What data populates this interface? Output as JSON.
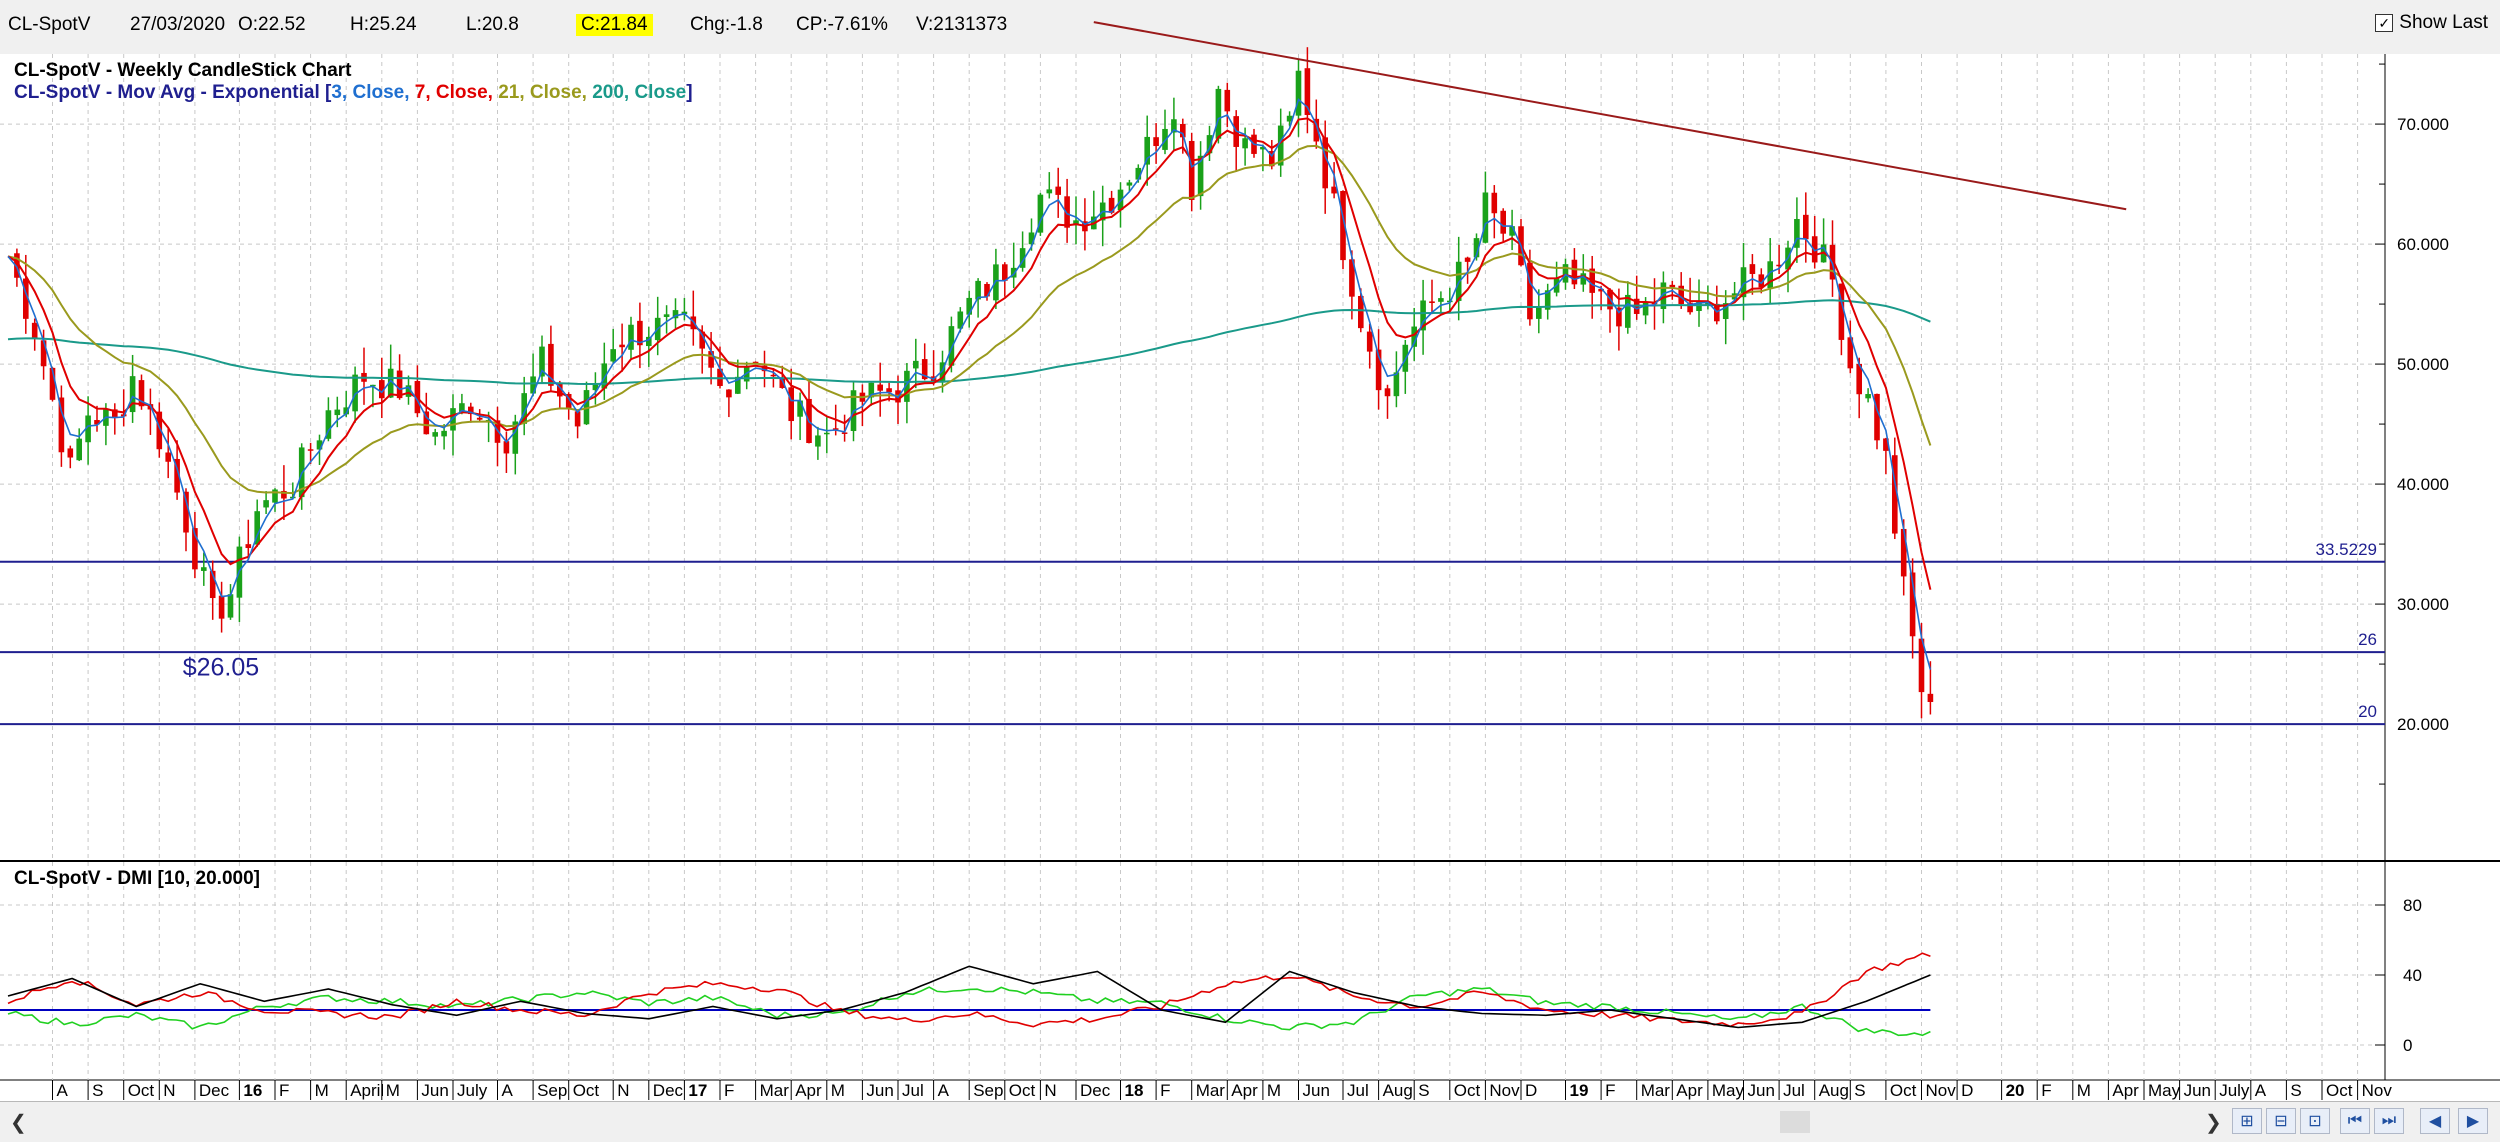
{
  "header": {
    "symbol": "CL-SpotV",
    "date": "27/03/2020",
    "open": "O:22.52",
    "high": "H:25.24",
    "low": "L:20.8",
    "close": "C:21.84",
    "change": "Chg:-1.8",
    "change_pct": "CP:-7.61%",
    "volume": "V:2131373",
    "show_last_label": "Show Last",
    "show_last_checked": true
  },
  "colors": {
    "up": "#1aa11a",
    "down": "#e00000",
    "ema3": "#1f6fd0",
    "ema7": "#e00000",
    "ema21": "#9a9a1e",
    "ema200": "#1a9a8a",
    "trendline": "#9a1a1a",
    "hline": "#1f1f8f",
    "dmi_plus": "#20d020",
    "dmi_minus": "#e00000",
    "adx": "#000000",
    "dmi_level": "#0000c0"
  },
  "chart_data": [
    {
      "type": "candlestick",
      "title": "CL-SpotV - Weekly CandleStick Chart",
      "subtitle_parts": [
        {
          "text": "CL-SpotV - Mov Avg - Exponential [",
          "color": "#1f1f8f"
        },
        {
          "text": "3, Close, ",
          "color": "#1f6fd0"
        },
        {
          "text": "7, Close, ",
          "color": "#e00000"
        },
        {
          "text": "21, Close, ",
          "color": "#9a9a1e"
        },
        {
          "text": "200, Close",
          "color": "#1a9a8a"
        },
        {
          "text": "]",
          "color": "#1f1f8f"
        }
      ],
      "ylim": [
        13,
        78
      ],
      "yticks": [
        "20.000",
        "30.000",
        "40.000",
        "50.000",
        "60.000",
        "70.000"
      ],
      "grid": true,
      "horizontal_levels": [
        {
          "value": 33.5229,
          "label": "33.5229"
        },
        {
          "value": 26,
          "label": "26"
        },
        {
          "value": 20,
          "label": "20"
        }
      ],
      "annotation": {
        "text": "$26.05",
        "x_week": 23,
        "y": 26.05
      },
      "trendline": {
        "start": {
          "week": 122,
          "value": 78.5
        },
        "end": {
          "week": 238,
          "value": 62.9
        }
      },
      "x_start_label": "A",
      "x_tick_labels": [
        {
          "label": "A",
          "week": 5
        },
        {
          "label": "S",
          "week": 9
        },
        {
          "label": "Oct",
          "week": 13
        },
        {
          "label": "N",
          "week": 17
        },
        {
          "label": "Dec",
          "week": 21
        },
        {
          "label": "16",
          "week": 26,
          "bold": true
        },
        {
          "label": "F",
          "week": 30
        },
        {
          "label": "M",
          "week": 34
        },
        {
          "label": "April",
          "week": 38
        },
        {
          "label": "M",
          "week": 42
        },
        {
          "label": "Jun",
          "week": 46
        },
        {
          "label": "July",
          "week": 50
        },
        {
          "label": "A",
          "week": 55
        },
        {
          "label": "Sep",
          "week": 59
        },
        {
          "label": "Oct",
          "week": 63
        },
        {
          "label": "N",
          "week": 68
        },
        {
          "label": "Dec",
          "week": 72
        },
        {
          "label": "17",
          "week": 76,
          "bold": true
        },
        {
          "label": "F",
          "week": 80
        },
        {
          "label": "Mar",
          "week": 84
        },
        {
          "label": "Apr",
          "week": 88
        },
        {
          "label": "M",
          "week": 92
        },
        {
          "label": "Jun",
          "week": 96
        },
        {
          "label": "Jul",
          "week": 100
        },
        {
          "label": "A",
          "week": 104
        },
        {
          "label": "Sep",
          "week": 108
        },
        {
          "label": "Oct",
          "week": 112
        },
        {
          "label": "N",
          "week": 116
        },
        {
          "label": "Dec",
          "week": 120
        },
        {
          "label": "18",
          "week": 125,
          "bold": true
        },
        {
          "label": "F",
          "week": 129
        },
        {
          "label": "Mar",
          "week": 133
        },
        {
          "label": "Apr",
          "week": 137
        },
        {
          "label": "M",
          "week": 141
        },
        {
          "label": "Jun",
          "week": 145
        },
        {
          "label": "Jul",
          "week": 150
        },
        {
          "label": "Aug",
          "week": 154
        },
        {
          "label": "S",
          "week": 158
        },
        {
          "label": "Oct",
          "week": 162
        },
        {
          "label": "Nov",
          "week": 166
        },
        {
          "label": "D",
          "week": 170
        },
        {
          "label": "19",
          "week": 175,
          "bold": true
        },
        {
          "label": "F",
          "week": 179
        },
        {
          "label": "Mar",
          "week": 183
        },
        {
          "label": "Apr",
          "week": 187
        },
        {
          "label": "May",
          "week": 191
        },
        {
          "label": "Jun",
          "week": 195
        },
        {
          "label": "Jul",
          "week": 199
        },
        {
          "label": "Aug",
          "week": 203
        },
        {
          "label": "S",
          "week": 207
        },
        {
          "label": "Oct",
          "week": 211
        },
        {
          "label": "Nov",
          "week": 215
        },
        {
          "label": "D",
          "week": 219
        },
        {
          "label": "20",
          "week": 224,
          "bold": true
        },
        {
          "label": "F",
          "week": 228
        },
        {
          "label": "M",
          "week": 232
        },
        {
          "label": "Apr",
          "week": 236
        },
        {
          "label": "May",
          "week": 240
        },
        {
          "label": "Jun",
          "week": 244
        },
        {
          "label": "July",
          "week": 248
        },
        {
          "label": "A",
          "week": 252
        },
        {
          "label": "S",
          "week": 256
        },
        {
          "label": "Oct",
          "week": 260
        },
        {
          "label": "Nov",
          "week": 264
        }
      ],
      "close_anchors": [
        {
          "week": 0,
          "close": 59
        },
        {
          "week": 3,
          "close": 53
        },
        {
          "week": 7,
          "close": 41
        },
        {
          "week": 9,
          "close": 46
        },
        {
          "week": 12,
          "close": 45
        },
        {
          "week": 14,
          "close": 49
        },
        {
          "week": 17,
          "close": 44
        },
        {
          "week": 20,
          "close": 37
        },
        {
          "week": 23,
          "close": 29
        },
        {
          "week": 25,
          "close": 31
        },
        {
          "week": 28,
          "close": 38
        },
        {
          "week": 32,
          "close": 40
        },
        {
          "week": 36,
          "close": 46
        },
        {
          "week": 40,
          "close": 49
        },
        {
          "week": 44,
          "close": 48
        },
        {
          "week": 48,
          "close": 44
        },
        {
          "week": 52,
          "close": 47
        },
        {
          "week": 56,
          "close": 44
        },
        {
          "week": 60,
          "close": 50
        },
        {
          "week": 64,
          "close": 45
        },
        {
          "week": 68,
          "close": 52
        },
        {
          "week": 72,
          "close": 53
        },
        {
          "week": 76,
          "close": 53
        },
        {
          "week": 80,
          "close": 48
        },
        {
          "week": 84,
          "close": 51
        },
        {
          "week": 88,
          "close": 46
        },
        {
          "week": 92,
          "close": 44
        },
        {
          "week": 96,
          "close": 47
        },
        {
          "week": 100,
          "close": 48
        },
        {
          "week": 104,
          "close": 50
        },
        {
          "week": 108,
          "close": 55
        },
        {
          "week": 112,
          "close": 58
        },
        {
          "week": 116,
          "close": 64
        },
        {
          "week": 120,
          "close": 62
        },
        {
          "week": 124,
          "close": 64
        },
        {
          "week": 128,
          "close": 68
        },
        {
          "week": 131,
          "close": 72
        },
        {
          "week": 133,
          "close": 65
        },
        {
          "week": 136,
          "close": 73
        },
        {
          "week": 139,
          "close": 68
        },
        {
          "week": 142,
          "close": 67
        },
        {
          "week": 144,
          "close": 70
        },
        {
          "week": 145,
          "close": 74
        },
        {
          "week": 147,
          "close": 69
        },
        {
          "week": 150,
          "close": 60
        },
        {
          "week": 152,
          "close": 54
        },
        {
          "week": 155,
          "close": 47
        },
        {
          "week": 157,
          "close": 52
        },
        {
          "week": 160,
          "close": 55
        },
        {
          "week": 164,
          "close": 58
        },
        {
          "week": 166,
          "close": 63
        },
        {
          "week": 169,
          "close": 60
        },
        {
          "week": 171,
          "close": 54
        },
        {
          "week": 175,
          "close": 57
        },
        {
          "week": 179,
          "close": 55
        },
        {
          "week": 183,
          "close": 54
        },
        {
          "week": 186,
          "close": 56
        },
        {
          "week": 190,
          "close": 54
        },
        {
          "week": 194,
          "close": 56
        },
        {
          "week": 198,
          "close": 58
        },
        {
          "week": 201,
          "close": 62
        },
        {
          "week": 203,
          "close": 60
        },
        {
          "week": 205,
          "close": 57
        },
        {
          "week": 207,
          "close": 50
        },
        {
          "week": 209,
          "close": 47
        },
        {
          "week": 211,
          "close": 42
        },
        {
          "week": 213,
          "close": 31
        },
        {
          "week": 215,
          "close": 23
        },
        {
          "week": 216,
          "close": 21.84
        }
      ],
      "ema_endpoints": {
        "ema3": 26.5,
        "ema7": 35,
        "ema21": 46.5,
        "ema200": 57.5
      }
    },
    {
      "type": "line",
      "title": "CL-SpotV - DMI [10, 20.000]",
      "ylim": [
        -10,
        90
      ],
      "yticks": [
        "0",
        "40",
        "80"
      ],
      "level": 20,
      "series": [
        {
          "key": "plus_di",
          "anchors": [
            [
              0,
              18
            ],
            [
              8,
              12
            ],
            [
              16,
              17
            ],
            [
              24,
              10
            ],
            [
              32,
              22
            ],
            [
              40,
              27
            ],
            [
              48,
              25
            ],
            [
              56,
              22
            ],
            [
              64,
              26
            ],
            [
              72,
              30
            ],
            [
              80,
              24
            ],
            [
              88,
              27
            ],
            [
              96,
              17
            ],
            [
              104,
              18
            ],
            [
              112,
              30
            ],
            [
              120,
              33
            ],
            [
              128,
              30
            ],
            [
              136,
              25
            ],
            [
              144,
              24
            ],
            [
              152,
              15
            ],
            [
              160,
              10
            ],
            [
              168,
              13
            ],
            [
              176,
              28
            ],
            [
              184,
              32
            ],
            [
              192,
              24
            ],
            [
              200,
              22
            ],
            [
              208,
              18
            ],
            [
              216,
              14
            ],
            [
              224,
              22
            ],
            [
              232,
              8
            ],
            [
              240,
              6
            ]
          ]
        },
        {
          "key": "minus_di",
          "anchors": [
            [
              0,
              25
            ],
            [
              8,
              38
            ],
            [
              16,
              23
            ],
            [
              24,
              30
            ],
            [
              32,
              20
            ],
            [
              40,
              18
            ],
            [
              48,
              16
            ],
            [
              56,
              25
            ],
            [
              64,
              20
            ],
            [
              72,
              17
            ],
            [
              80,
              30
            ],
            [
              88,
              35
            ],
            [
              96,
              32
            ],
            [
              104,
              19
            ],
            [
              112,
              14
            ],
            [
              120,
              18
            ],
            [
              128,
              12
            ],
            [
              136,
              15
            ],
            [
              144,
              22
            ],
            [
              152,
              35
            ],
            [
              160,
              40
            ],
            [
              168,
              28
            ],
            [
              176,
              22
            ],
            [
              184,
              30
            ],
            [
              192,
              20
            ],
            [
              200,
              17
            ],
            [
              208,
              14
            ],
            [
              216,
              12
            ],
            [
              224,
              18
            ],
            [
              232,
              42
            ],
            [
              240,
              52
            ]
          ]
        },
        {
          "key": "adx",
          "anchors": [
            [
              0,
              28
            ],
            [
              8,
              38
            ],
            [
              16,
              22
            ],
            [
              24,
              35
            ],
            [
              32,
              25
            ],
            [
              40,
              32
            ],
            [
              48,
              23
            ],
            [
              56,
              17
            ],
            [
              64,
              25
            ],
            [
              72,
              18
            ],
            [
              80,
              15
            ],
            [
              88,
              22
            ],
            [
              96,
              15
            ],
            [
              104,
              20
            ],
            [
              112,
              30
            ],
            [
              120,
              45
            ],
            [
              128,
              35
            ],
            [
              136,
              42
            ],
            [
              144,
              20
            ],
            [
              152,
              13
            ],
            [
              160,
              42
            ],
            [
              168,
              30
            ],
            [
              176,
              22
            ],
            [
              184,
              18
            ],
            [
              192,
              17
            ],
            [
              200,
              20
            ],
            [
              208,
              15
            ],
            [
              216,
              10
            ],
            [
              224,
              13
            ],
            [
              232,
              25
            ],
            [
              240,
              40
            ]
          ]
        }
      ],
      "series_weeks_total": 240
    }
  ]
}
